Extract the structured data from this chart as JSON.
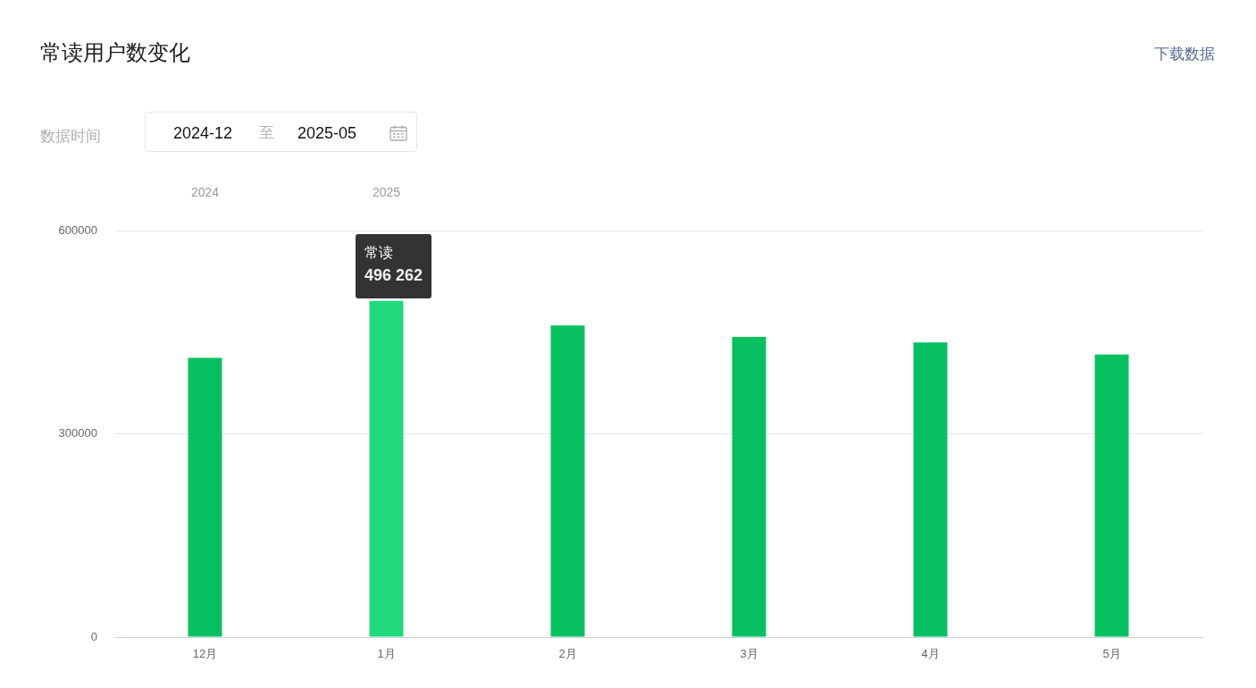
{
  "chart_data": {
    "type": "bar",
    "title": "常读用户数变化",
    "categories": [
      "12月",
      "1月",
      "2月",
      "3月",
      "4月",
      "5月"
    ],
    "series": [
      {
        "name": "常读",
        "colors": [
          "#07c160",
          "#21d87a",
          "#07c160",
          "#07c160",
          "#07c160",
          "#07c160"
        ],
        "values": [
          412000,
          496262,
          460000,
          443000,
          435000,
          417000
        ],
        "value_labels": [
          null,
          "496 262",
          null,
          null,
          null,
          null
        ]
      }
    ],
    "ylim": [
      0,
      600000
    ],
    "yticks": [
      0,
      300000,
      600000
    ],
    "grid": "y",
    "legend": false,
    "annotations": [
      "下载数据",
      "数据时间",
      "2024-12",
      "至",
      "2025-05",
      "2024",
      "2025"
    ]
  }
}
